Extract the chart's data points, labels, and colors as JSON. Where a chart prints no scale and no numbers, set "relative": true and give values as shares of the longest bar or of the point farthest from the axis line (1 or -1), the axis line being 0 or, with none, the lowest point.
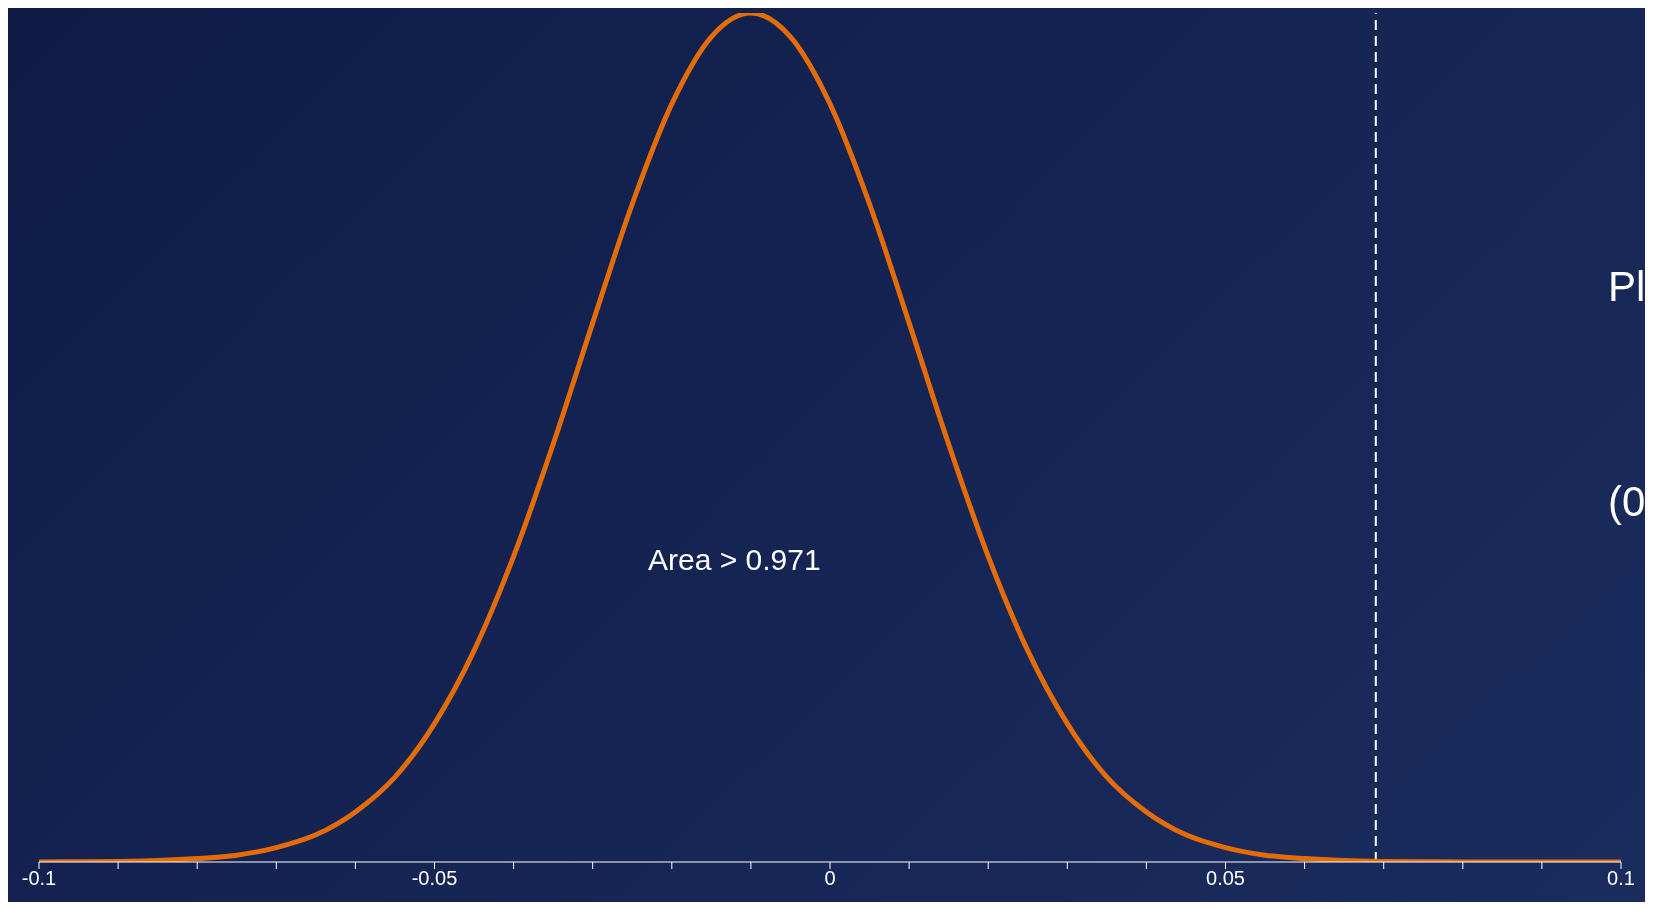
{
  "chart_data": {
    "type": "line",
    "relative": true,
    "color": "#e36c09",
    "x": [
      -0.1,
      -0.095,
      -0.09,
      -0.085,
      -0.08,
      -0.075,
      -0.07,
      -0.065,
      -0.06,
      -0.055,
      -0.05,
      -0.045,
      -0.04,
      -0.035,
      -0.03,
      -0.025,
      -0.02,
      -0.015,
      -0.01,
      -0.005,
      0,
      0.005,
      0.01,
      0.015,
      0.02,
      0.025,
      0.03,
      0.035,
      0.04,
      0.045,
      0.05,
      0.055,
      0.06,
      0.065,
      0.07,
      0.075,
      0.08,
      0.085,
      0.09,
      0.095,
      0.1
    ],
    "values": [
      0.0001,
      0.0003,
      0.0007,
      0.0017,
      0.004,
      0.008,
      0.017,
      0.032,
      0.059,
      0.1,
      0.163,
      0.249,
      0.36,
      0.492,
      0.635,
      0.775,
      0.893,
      0.972,
      1,
      0.972,
      0.893,
      0.775,
      0.635,
      0.492,
      0.36,
      0.249,
      0.163,
      0.1,
      0.059,
      0.032,
      0.017,
      0.008,
      0.004,
      0.0017,
      0.0007,
      0.0003,
      0.0001,
      0,
      0,
      0,
      0
    ],
    "xlim": [
      -0.1,
      0.1
    ],
    "xticks": [
      -0.1,
      {
        "value": -0.09,
        "label": null
      },
      {
        "value": -0.08,
        "label": null
      },
      {
        "value": -0.07,
        "label": null
      },
      {
        "value": -0.06,
        "label": null
      },
      -0.05,
      {
        "value": -0.04,
        "label": null
      },
      {
        "value": -0.03,
        "label": null
      },
      {
        "value": -0.02,
        "label": null
      },
      {
        "value": -0.01,
        "label": null
      },
      0,
      {
        "value": 0.01,
        "label": null
      },
      {
        "value": 0.02,
        "label": null
      },
      {
        "value": 0.03,
        "label": null
      },
      {
        "value": 0.04,
        "label": null
      },
      0.05,
      {
        "value": 0.06,
        "label": null
      },
      {
        "value": 0.07,
        "label": null
      },
      {
        "value": 0.08,
        "label": null
      },
      {
        "value": 0.09,
        "label": null
      },
      0.1
    ],
    "grid": false,
    "legend": false,
    "marker": "none",
    "line_style": "solid",
    "ref_lines": [
      {
        "axis": "x",
        "value": 0.069,
        "color": "#ffffff",
        "line_style": "dashed"
      }
    ],
    "annotations": [
      "Area > 0.971",
      "Pl",
      "(0"
    ]
  }
}
